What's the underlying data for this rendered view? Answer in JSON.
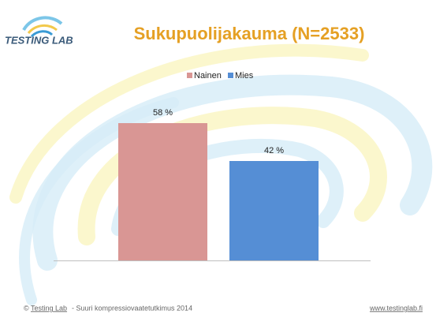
{
  "logo": "TESTING LAB",
  "chart_data": {
    "type": "bar",
    "title": "Sukupuolijakauma (N=2533)",
    "categories": [
      null
    ],
    "series": [
      {
        "name": "Nainen",
        "color": "#d99694",
        "values": [
          58
        ],
        "value_labels": [
          "58 %"
        ]
      },
      {
        "name": "Mies",
        "color": "#558ed5",
        "values": [
          42
        ],
        "value_labels": [
          "42 %"
        ]
      }
    ],
    "legend": "top"
  },
  "footer": {
    "copyright": "©",
    "link": "Testing Lab",
    "text": "-  Suuri kompressiovaatetutkimus 2014",
    "url": "www.testinglab.fi"
  }
}
